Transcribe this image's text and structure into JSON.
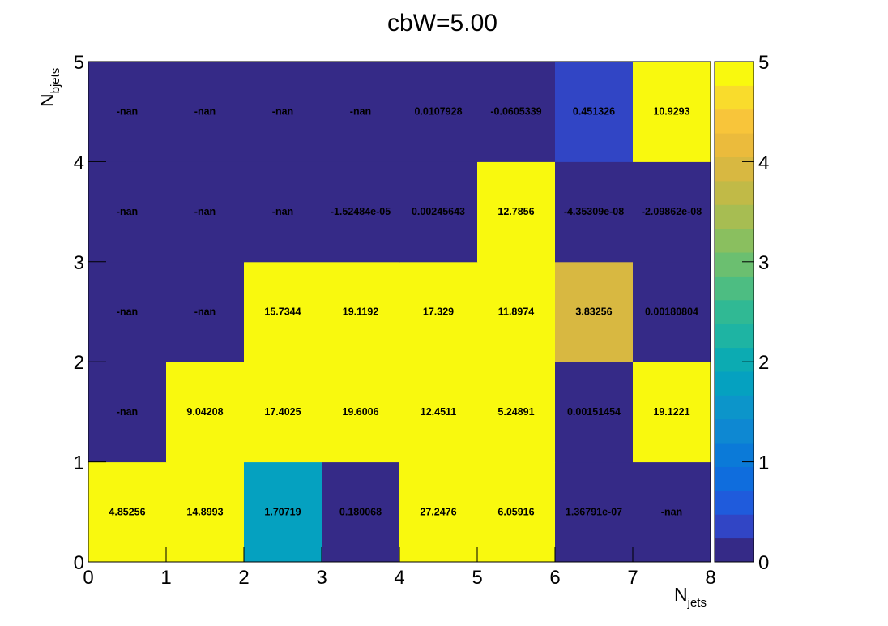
{
  "chart_data": {
    "type": "heatmap",
    "title": "cbW=5.00",
    "xlabel": "N",
    "xlabel_sub": "jets",
    "ylabel": "N",
    "ylabel_sub": "bjets",
    "x_edges": [
      0,
      1,
      2,
      3,
      4,
      5,
      6,
      7,
      8
    ],
    "y_edges": [
      0,
      1,
      2,
      3,
      4,
      5
    ],
    "x_ticks": [
      "0",
      "1",
      "2",
      "3",
      "4",
      "5",
      "6",
      "7",
      "8"
    ],
    "y_ticks": [
      "0",
      "1",
      "2",
      "3",
      "4",
      "5"
    ],
    "zlim": [
      0,
      5
    ],
    "z_ticks": [
      "0",
      "1",
      "2",
      "3",
      "4",
      "5"
    ],
    "nan_color": "#352a87",
    "palette": [
      "#352a87",
      "#3145c5",
      "#1f5bdc",
      "#0f6ddd",
      "#0b7ad8",
      "#0e88d2",
      "#0c95ca",
      "#05a1c0",
      "#0cabb2",
      "#1eb4a3",
      "#30b994",
      "#4dbd82",
      "#6bbf70",
      "#8abf5f",
      "#a7bd52",
      "#c1ba47",
      "#d8b841",
      "#ebbb3c",
      "#f8c53a",
      "#f9dc2c",
      "#f9f90e"
    ],
    "cells": [
      {
        "row": 0,
        "values": [
          "4.85256",
          "14.8993",
          "1.70719",
          "0.180068",
          "27.2476",
          "6.05916",
          "1.36791e-07",
          "-nan"
        ]
      },
      {
        "row": 1,
        "values": [
          "-nan",
          "9.04208",
          "17.4025",
          "19.6006",
          "12.4511",
          "5.24891",
          "0.00151454",
          "19.1221"
        ]
      },
      {
        "row": 2,
        "values": [
          "-nan",
          "-nan",
          "15.7344",
          "19.1192",
          "17.329",
          "11.8974",
          "3.83256",
          "0.00180804"
        ]
      },
      {
        "row": 3,
        "values": [
          "-nan",
          "-nan",
          "-nan",
          "-1.52484e-05",
          "0.00245643",
          "12.7856",
          "-4.35309e-08",
          "-2.09862e-08"
        ]
      },
      {
        "row": 4,
        "values": [
          "-nan",
          "-nan",
          "-nan",
          "-nan",
          "0.0107928",
          "-0.0605339",
          "0.451326",
          "10.9293"
        ]
      }
    ]
  }
}
